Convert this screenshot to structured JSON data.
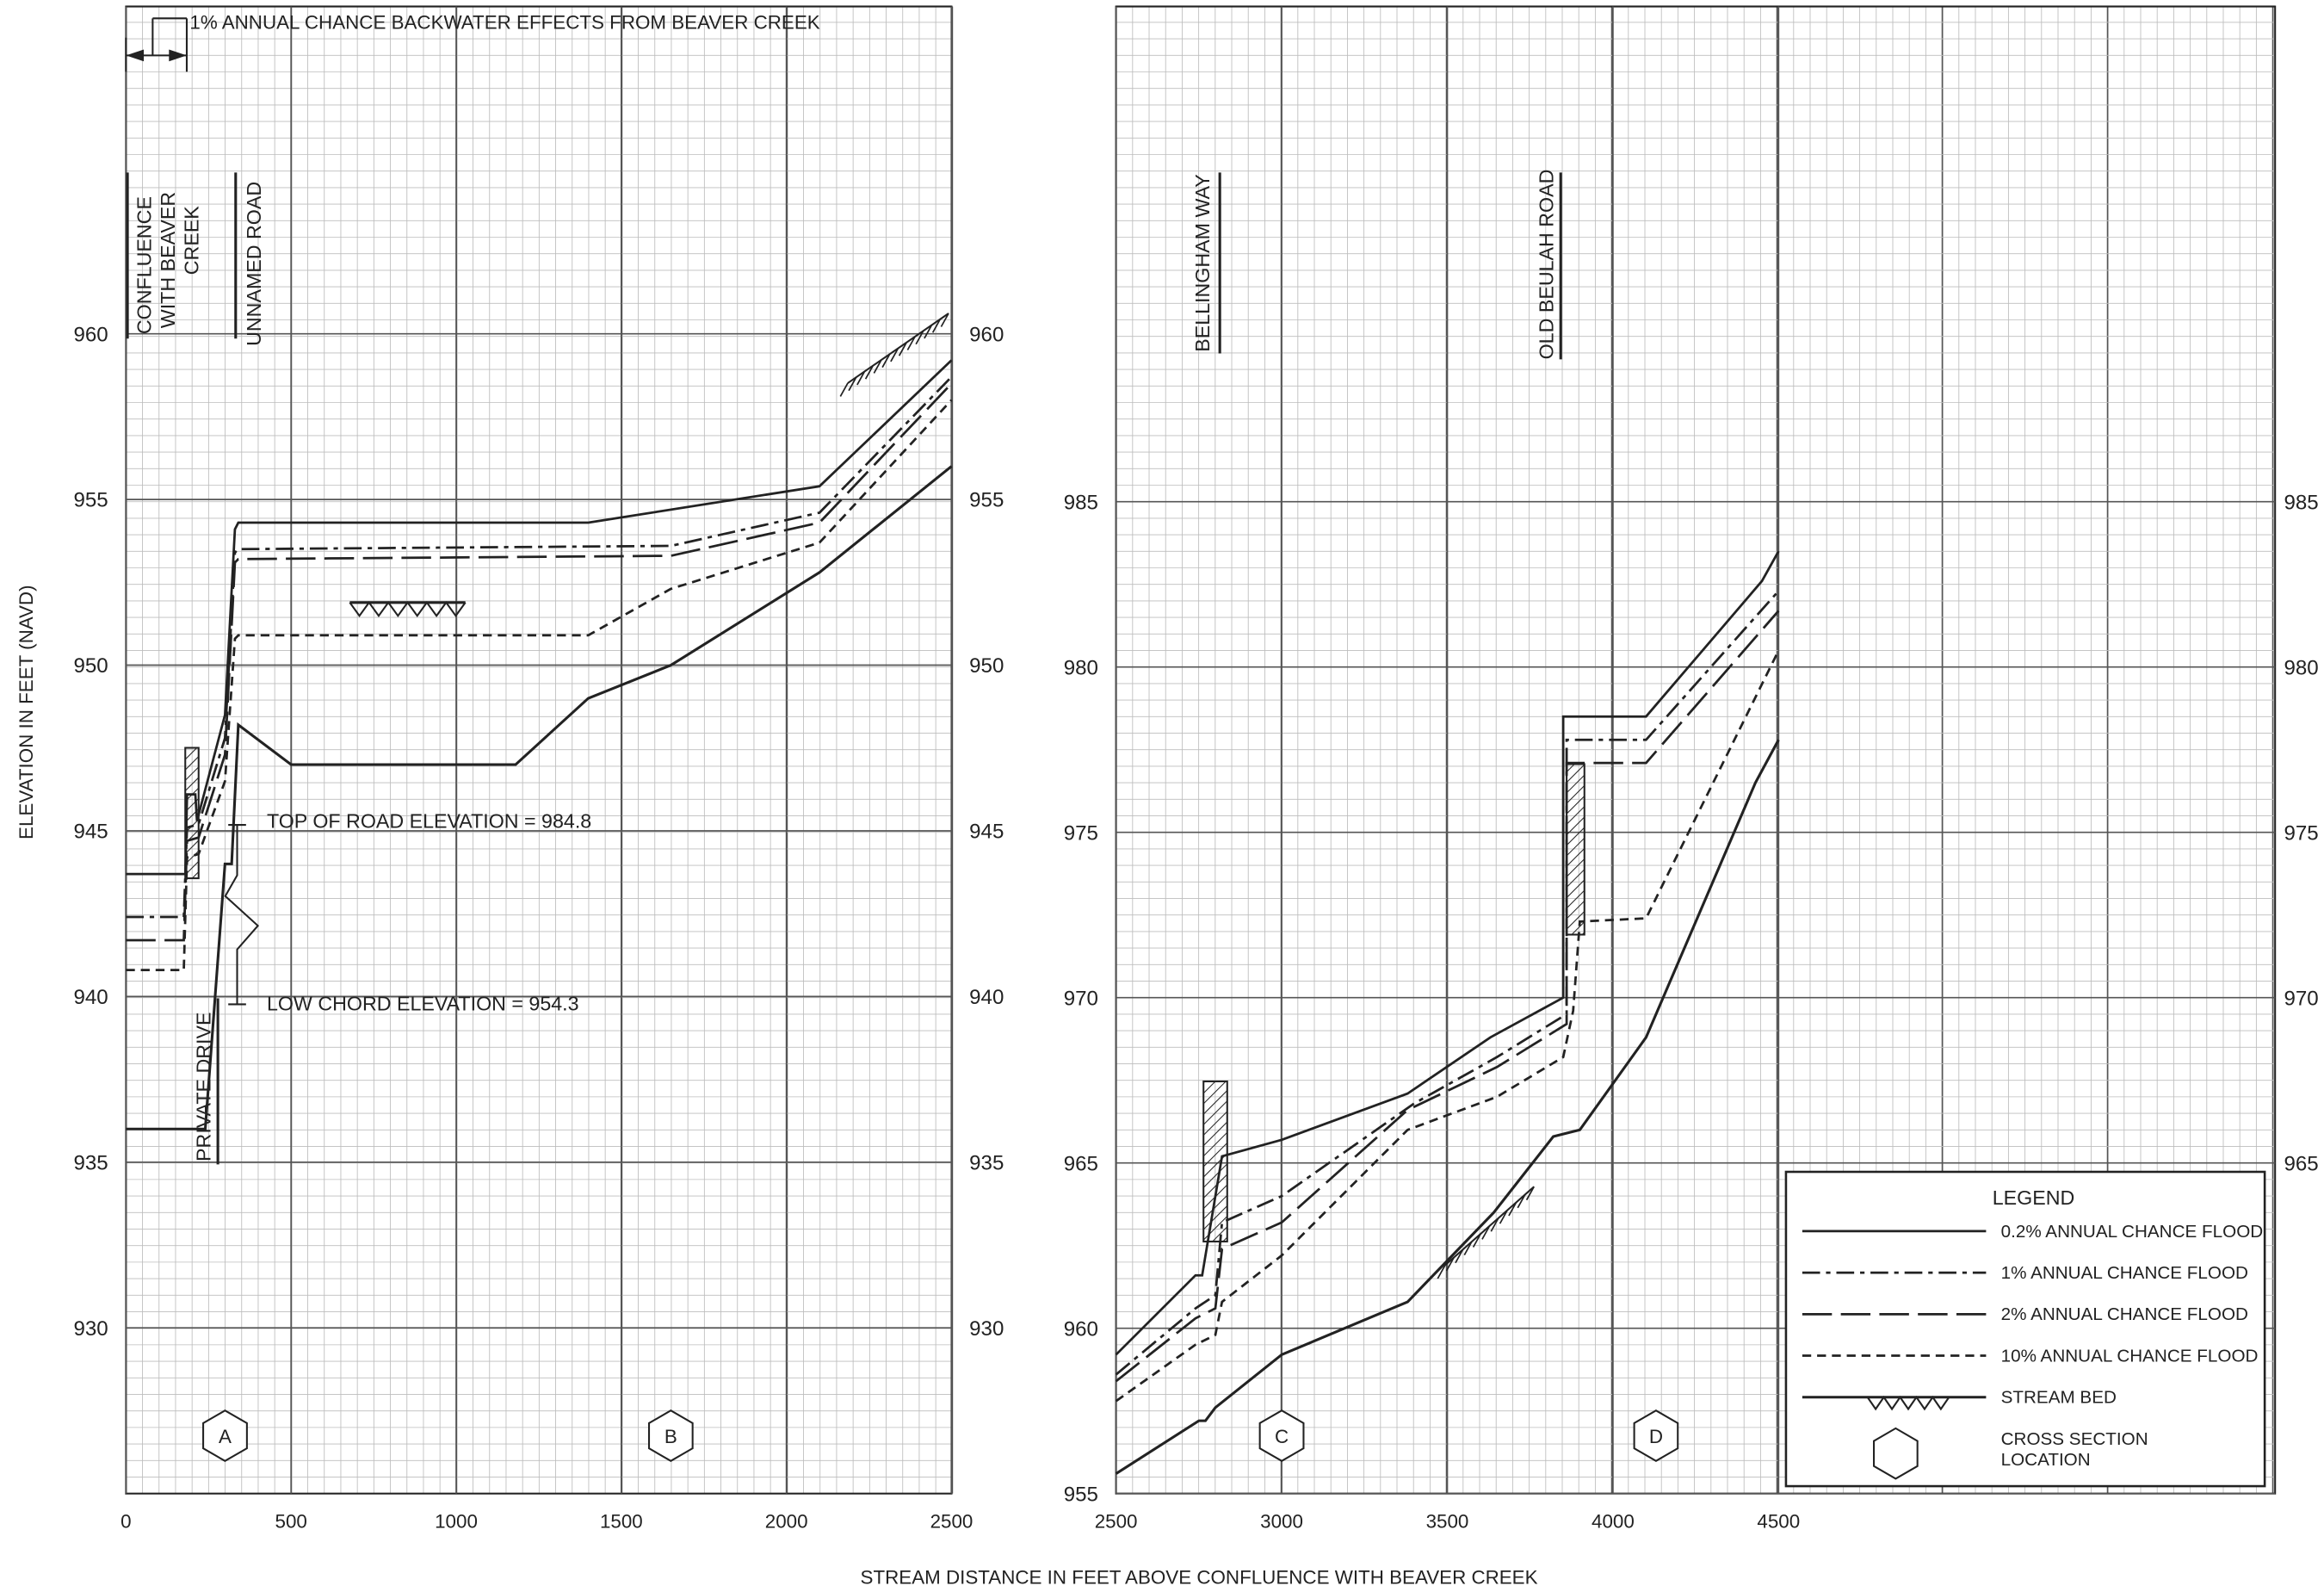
{
  "chart_data": [
    {
      "type": "line",
      "panel": "left",
      "x_range": [
        0,
        2500
      ],
      "y_range": [
        925,
        965
      ],
      "x_ticks": [
        "0",
        "500",
        "1000",
        "1500",
        "2000",
        "2500"
      ],
      "y_ticks": [
        "930",
        "935",
        "940",
        "945",
        "950",
        "955",
        "960"
      ],
      "series": [
        {
          "name": "0.2% ANNUAL CHANCE FLOOD",
          "style": "solid",
          "points": [
            [
              0,
              943.7
            ],
            [
              180,
              943.7
            ],
            [
              185,
              946.1
            ],
            [
              210,
              946.1
            ],
            [
              215,
              945.3
            ],
            [
              300,
              948.5
            ],
            [
              330,
              954.1
            ],
            [
              340,
              954.3
            ],
            [
              1400,
              954.3
            ],
            [
              2100,
              955.4
            ],
            [
              2500,
              959.2
            ]
          ]
        },
        {
          "name": "1% ANNUAL CHANCE FLOOD",
          "style": "dash-dot",
          "points": [
            [
              0,
              942.4
            ],
            [
              175,
              942.4
            ],
            [
              185,
              945.1
            ],
            [
              220,
              945.2
            ],
            [
              300,
              947.8
            ],
            [
              330,
              953.4
            ],
            [
              340,
              953.5
            ],
            [
              1650,
              953.6
            ],
            [
              2100,
              954.6
            ],
            [
              2500,
              958.7
            ]
          ]
        },
        {
          "name": "2% ANNUAL CHANCE FLOOD",
          "style": "long-dash",
          "points": [
            [
              0,
              941.7
            ],
            [
              175,
              941.7
            ],
            [
              185,
              944.7
            ],
            [
              220,
              944.8
            ],
            [
              300,
              947.3
            ],
            [
              330,
              953.1
            ],
            [
              340,
              953.2
            ],
            [
              1650,
              953.3
            ],
            [
              2100,
              954.3
            ],
            [
              2500,
              958.5
            ]
          ]
        },
        {
          "name": "10% ANNUAL CHANCE FLOOD",
          "style": "short-dash",
          "points": [
            [
              0,
              940.8
            ],
            [
              175,
              940.8
            ],
            [
              185,
              944.2
            ],
            [
              220,
              944.3
            ],
            [
              300,
              946.5
            ],
            [
              330,
              950.8
            ],
            [
              340,
              950.9
            ],
            [
              1400,
              950.9
            ],
            [
              1650,
              952.3
            ],
            [
              2100,
              953.7
            ],
            [
              2500,
              958.0
            ]
          ]
        },
        {
          "name": "STREAM BED",
          "style": "solid",
          "points": [
            [
              0,
              936.0
            ],
            [
              240,
              936.0
            ],
            [
              300,
              944.0
            ],
            [
              320,
              944.0
            ],
            [
              340,
              948.2
            ],
            [
              500,
              947.0
            ],
            [
              1180,
              947.0
            ],
            [
              1400,
              949.0
            ],
            [
              1650,
              950.0
            ],
            [
              2100,
              952.8
            ],
            [
              2500,
              956.0
            ]
          ]
        }
      ],
      "annotations": [
        "1% ANNUAL CHANCE BACKWATER EFFECTS FROM BEAVER CREEK",
        "CONFLUENCE WITH BEAVER CREEK",
        "UNNAMED ROAD",
        "PRIVATE DRIVE",
        "TOP OF ROAD ELEVATION = 984.8",
        "LOW CHORD ELEVATION = 954.3"
      ],
      "cross_sections": [
        {
          "label": "A",
          "x": 300
        },
        {
          "label": "B",
          "x": 1650
        }
      ]
    },
    {
      "type": "line",
      "panel": "right",
      "x_range": [
        2500,
        4500
      ],
      "y_range": [
        955,
        1000
      ],
      "x_ticks": [
        "2500",
        "3000",
        "3500",
        "4000",
        "4500"
      ],
      "y_ticks": [
        "955",
        "960",
        "965",
        "970",
        "975",
        "980",
        "985"
      ],
      "right_y_ticks": [
        "965",
        "970",
        "975",
        "980",
        "985"
      ],
      "series": [
        {
          "name": "0.2% ANNUAL CHANCE FLOOD",
          "style": "solid",
          "points": [
            [
              2500,
              959.2
            ],
            [
              2740,
              961.6
            ],
            [
              2760,
              961.6
            ],
            [
              2820,
              965.2
            ],
            [
              3000,
              965.7
            ],
            [
              3380,
              967.1
            ],
            [
              3630,
              968.8
            ],
            [
              3850,
              970.0
            ],
            [
              3850,
              978.5
            ],
            [
              4100,
              978.5
            ],
            [
              4450,
              982.6
            ],
            [
              4500,
              983.5
            ]
          ]
        },
        {
          "name": "1% ANNUAL CHANCE FLOOD",
          "style": "dash-dot",
          "points": [
            [
              2500,
              958.6
            ],
            [
              2740,
              960.6
            ],
            [
              2800,
              961.0
            ],
            [
              2820,
              963.2
            ],
            [
              3000,
              964.0
            ],
            [
              3400,
              966.8
            ],
            [
              3650,
              968.2
            ],
            [
              3860,
              969.5
            ],
            [
              3860,
              977.8
            ],
            [
              4100,
              977.8
            ],
            [
              4500,
              982.3
            ]
          ]
        },
        {
          "name": "2% ANNUAL CHANCE FLOOD",
          "style": "long-dash",
          "points": [
            [
              2500,
              958.4
            ],
            [
              2740,
              960.3
            ],
            [
              2800,
              960.6
            ],
            [
              2820,
              962.4
            ],
            [
              3000,
              963.2
            ],
            [
              3380,
              966.6
            ],
            [
              3650,
              967.9
            ],
            [
              3860,
              969.2
            ],
            [
              3860,
              977.1
            ],
            [
              4100,
              977.1
            ],
            [
              4500,
              981.7
            ]
          ]
        },
        {
          "name": "10% ANNUAL CHANCE FLOOD",
          "style": "short-dash",
          "points": [
            [
              2500,
              957.8
            ],
            [
              2740,
              959.5
            ],
            [
              2800,
              959.8
            ],
            [
              2820,
              960.8
            ],
            [
              3000,
              962.2
            ],
            [
              3380,
              966.0
            ],
            [
              3650,
              967.0
            ],
            [
              3850,
              968.2
            ],
            [
              3880,
              969.6
            ],
            [
              3900,
              972.3
            ],
            [
              4100,
              972.4
            ],
            [
              4500,
              980.5
            ]
          ]
        },
        {
          "name": "STREAM BED",
          "style": "solid",
          "points": [
            [
              2500,
              955.6
            ],
            [
              2750,
              957.2
            ],
            [
              2770,
              957.2
            ],
            [
              2800,
              957.6
            ],
            [
              3000,
              959.2
            ],
            [
              3380,
              960.8
            ],
            [
              3640,
              963.5
            ],
            [
              3820,
              965.8
            ],
            [
              3900,
              966.0
            ],
            [
              4100,
              968.8
            ],
            [
              4430,
              976.5
            ],
            [
              4500,
              977.8
            ]
          ]
        }
      ],
      "annotations": [
        "BELLINGHAM WAY",
        "OLD BEULAH ROAD"
      ],
      "cross_sections": [
        {
          "label": "C",
          "x": 3000
        },
        {
          "label": "D",
          "x": 4130
        }
      ]
    }
  ],
  "ylabel": "ELEVATION IN FEET (NAVD)",
  "xlabel": "STREAM DISTANCE IN FEET ABOVE CONFLUENCE WITH BEAVER CREEK",
  "legend": {
    "title": "LEGEND",
    "items": [
      {
        "label": "0.2% ANNUAL CHANCE FLOOD",
        "style": "solid"
      },
      {
        "label": "1% ANNUAL CHANCE FLOOD",
        "style": "dash-dot"
      },
      {
        "label": "2% ANNUAL CHANCE FLOOD",
        "style": "long-dash"
      },
      {
        "label": "10% ANNUAL CHANCE FLOOD",
        "style": "short-dash"
      },
      {
        "label": "STREAM BED",
        "style": "stream-bed"
      },
      {
        "label": "CROSS SECTION LOCATION",
        "style": "hexagon"
      }
    ]
  }
}
